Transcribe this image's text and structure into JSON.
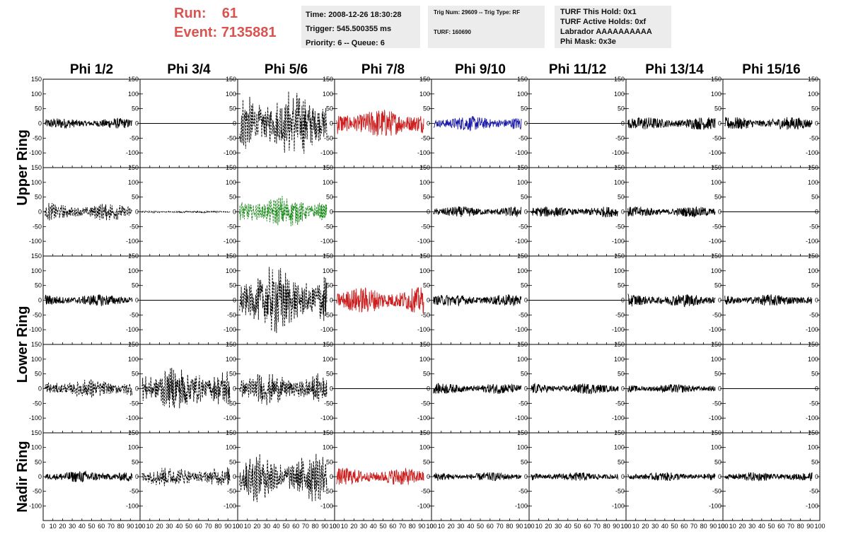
{
  "header": {
    "run_label": "Run:",
    "run_value": "61",
    "event_label": "Event:",
    "event_value": "7135881",
    "time": "Time: 2008-12-26 18:30:28",
    "trigger": "Trigger: 545.500355 ms",
    "priority": "Priority: 6 -- Queue: 6",
    "trig_num": "Trig Num: 29609 -- Trig Type: RF",
    "turf": "TURF: 160690",
    "turf_hold": "TURF This Hold: 0x1",
    "turf_active": "TURF Active Holds: 0xf",
    "labrador": "Labrador AAAAAAAAAA",
    "phi_mask": "Phi Mask: 0x3e"
  },
  "columns": [
    "Phi 1/2",
    "Phi 3/4",
    "Phi 5/6",
    "Phi 7/8",
    "Phi 9/10",
    "Phi 11/12",
    "Phi 13/14",
    "Phi 15/16"
  ],
  "ring_labels": [
    "Upper Ring",
    "Lower Ring",
    "Nadir Ring"
  ],
  "colors": {
    "red": "#cc2020",
    "blue": "#1a1aa8",
    "green": "#1a8a1a",
    "black": "#000000",
    "title_red": "#d9534f"
  },
  "chart_data": {
    "type": "line",
    "xlim": [
      0,
      100
    ],
    "ylim": [
      -150,
      150
    ],
    "x_ticks": [
      0,
      10,
      20,
      30,
      40,
      50,
      60,
      70,
      80,
      90,
      100
    ],
    "y_ticks": [
      -100,
      -50,
      0,
      50,
      100,
      150
    ],
    "panel_rows": 5,
    "panel_cols": 8,
    "panels": [
      [
        {
          "amp": 18,
          "color": "black",
          "dashed": false,
          "flat": false
        },
        {
          "amp": 0,
          "color": "black",
          "dashed": false,
          "flat": true
        },
        {
          "amp": 115,
          "color": "black",
          "dashed": true,
          "flat": false
        },
        {
          "amp": 50,
          "color": "red",
          "dashed": false,
          "flat": false
        },
        {
          "amp": 25,
          "color": "blue",
          "dashed": false,
          "flat": false
        },
        {
          "amp": 0,
          "color": "black",
          "dashed": false,
          "flat": true
        },
        {
          "amp": 22,
          "color": "black",
          "dashed": false,
          "flat": false
        },
        {
          "amp": 22,
          "color": "black",
          "dashed": false,
          "flat": false
        }
      ],
      [
        {
          "amp": 30,
          "color": "black",
          "dashed": true,
          "flat": false
        },
        {
          "amp": 4,
          "color": "black",
          "dashed": true,
          "flat": false
        },
        {
          "amp": 55,
          "color": "green",
          "dashed": true,
          "flat": false
        },
        {
          "amp": 0,
          "color": "black",
          "dashed": false,
          "flat": true
        },
        {
          "amp": 18,
          "color": "black",
          "dashed": false,
          "flat": false
        },
        {
          "amp": 18,
          "color": "black",
          "dashed": false,
          "flat": false
        },
        {
          "amp": 18,
          "color": "black",
          "dashed": false,
          "flat": false
        },
        {
          "amp": 0,
          "color": "black",
          "dashed": false,
          "flat": true
        }
      ],
      [
        {
          "amp": 20,
          "color": "black",
          "dashed": false,
          "flat": false
        },
        {
          "amp": 0,
          "color": "black",
          "dashed": false,
          "flat": true
        },
        {
          "amp": 115,
          "color": "black",
          "dashed": true,
          "flat": false
        },
        {
          "amp": 45,
          "color": "red",
          "dashed": false,
          "flat": false
        },
        {
          "amp": 20,
          "color": "black",
          "dashed": false,
          "flat": false
        },
        {
          "amp": 0,
          "color": "black",
          "dashed": false,
          "flat": true
        },
        {
          "amp": 22,
          "color": "black",
          "dashed": false,
          "flat": false
        },
        {
          "amp": 20,
          "color": "black",
          "dashed": false,
          "flat": false
        }
      ],
      [
        {
          "amp": 35,
          "color": "black",
          "dashed": true,
          "flat": false
        },
        {
          "amp": 80,
          "color": "black",
          "dashed": true,
          "flat": false
        },
        {
          "amp": 55,
          "color": "black",
          "dashed": true,
          "flat": false
        },
        {
          "amp": 0,
          "color": "black",
          "dashed": false,
          "flat": true
        },
        {
          "amp": 18,
          "color": "black",
          "dashed": false,
          "flat": false
        },
        {
          "amp": 18,
          "color": "black",
          "dashed": false,
          "flat": false
        },
        {
          "amp": 15,
          "color": "black",
          "dashed": false,
          "flat": false
        },
        {
          "amp": 0,
          "color": "black",
          "dashed": false,
          "flat": true
        }
      ],
      [
        {
          "amp": 20,
          "color": "black",
          "dashed": false,
          "flat": false
        },
        {
          "amp": 35,
          "color": "black",
          "dashed": true,
          "flat": false
        },
        {
          "amp": 85,
          "color": "black",
          "dashed": true,
          "flat": false
        },
        {
          "amp": 30,
          "color": "red",
          "dashed": false,
          "flat": false
        },
        {
          "amp": 15,
          "color": "black",
          "dashed": false,
          "flat": false
        },
        {
          "amp": 15,
          "color": "black",
          "dashed": false,
          "flat": false
        },
        {
          "amp": 15,
          "color": "black",
          "dashed": false,
          "flat": false
        },
        {
          "amp": 15,
          "color": "black",
          "dashed": false,
          "flat": false
        }
      ]
    ]
  }
}
